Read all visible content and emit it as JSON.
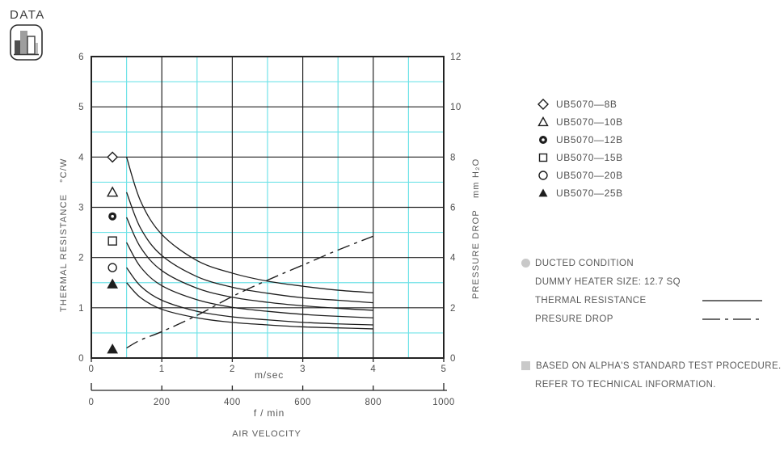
{
  "header": {
    "title": "DATA",
    "icon": "bar-chart-icon"
  },
  "colors": {
    "background": "#ffffff",
    "grid_minor": "#72e3e8",
    "grid_major": "#232323",
    "curve": "#1e1e1e",
    "tick_text": "#4f4f4f",
    "label_text": "#585858",
    "note_bullet": "#c9c9c9"
  },
  "axes": {
    "left_label": "THERMAL RESISTANCE",
    "left_unit": "°C/W",
    "right_label": "PRESSURE DROP",
    "right_unit": "mm H₂O",
    "x_unit_primary": "m/sec",
    "x_unit_secondary": "f / min",
    "x_title": "AIR VELOCITY"
  },
  "chart_data": {
    "type": "line",
    "title": "Thermal resistance and pressure drop vs air velocity",
    "x_axis": {
      "range": [
        0,
        5
      ],
      "ticks": [
        0,
        1,
        2,
        3,
        4,
        5
      ],
      "minor_step": 0.5,
      "unit": "m/sec"
    },
    "x_axis_secondary": {
      "range": [
        0,
        1000
      ],
      "ticks": [
        0,
        200,
        400,
        600,
        800,
        1000
      ],
      "unit": "f / min"
    },
    "y_left": {
      "range": [
        0,
        6
      ],
      "ticks": [
        0,
        1,
        2,
        3,
        4,
        5,
        6
      ],
      "minor_step": 0.5,
      "label": "THERMAL RESISTANCE",
      "unit": "°C/W"
    },
    "y_right": {
      "range": [
        0,
        12
      ],
      "ticks": [
        0,
        2,
        4,
        6,
        8,
        10,
        12
      ],
      "label": "PRESSURE DROP",
      "unit": "mm H₂O"
    },
    "grid": "on",
    "x_samples": [
      0.5,
      0.7,
      1,
      1.5,
      2,
      2.5,
      3,
      3.5,
      4
    ],
    "series": [
      {
        "name": "UB5070-8B",
        "axis": "left",
        "style": "solid",
        "marker": "diamond-open",
        "marker_point": {
          "x": 0.3,
          "y": 4.0
        },
        "values": [
          4.0,
          3.12,
          2.46,
          1.94,
          1.69,
          1.53,
          1.43,
          1.35,
          1.3
        ]
      },
      {
        "name": "UB5070-10B",
        "axis": "left",
        "style": "solid",
        "marker": "triangle-open",
        "marker_point": {
          "x": 0.3,
          "y": 3.3
        },
        "values": [
          3.3,
          2.58,
          2.04,
          1.62,
          1.41,
          1.29,
          1.2,
          1.15,
          1.1
        ]
      },
      {
        "name": "UB5070-12B",
        "axis": "left",
        "style": "solid",
        "marker": "circle-dot",
        "marker_point": {
          "x": 0.3,
          "y": 2.82
        },
        "values": [
          2.8,
          2.2,
          1.74,
          1.39,
          1.21,
          1.11,
          1.04,
          0.99,
          0.95
        ]
      },
      {
        "name": "UB5070-15B",
        "axis": "left",
        "style": "solid",
        "marker": "square-open",
        "marker_point": {
          "x": 0.3,
          "y": 2.33
        },
        "values": [
          2.3,
          1.81,
          1.44,
          1.16,
          1.01,
          0.93,
          0.87,
          0.83,
          0.8
        ]
      },
      {
        "name": "UB5070-20B",
        "axis": "left",
        "style": "solid",
        "marker": "circle-open",
        "marker_point": {
          "x": 0.3,
          "y": 1.8
        },
        "values": [
          1.8,
          1.43,
          1.15,
          0.93,
          0.82,
          0.76,
          0.71,
          0.68,
          0.66
        ]
      },
      {
        "name": "UB5070-25B",
        "axis": "left",
        "style": "solid",
        "marker": "triangle-filled",
        "marker_point": {
          "x": 0.3,
          "y": 1.47
        },
        "values": [
          1.5,
          1.2,
          0.97,
          0.8,
          0.71,
          0.66,
          0.62,
          0.6,
          0.58
        ]
      }
    ],
    "pressure_series": {
      "name": "PRESURE DROP",
      "axis": "right",
      "style": "dash-dot",
      "marker": "triangle-filled",
      "marker_point": {
        "x": 0.3,
        "y": 0.35
      },
      "values": [
        0.4,
        0.72,
        1.05,
        1.7,
        2.45,
        3.1,
        3.7,
        4.3,
        4.85
      ]
    }
  },
  "legend": {
    "items": [
      {
        "marker": "diamond-open",
        "label": "UB5070—8B"
      },
      {
        "marker": "triangle-open",
        "label": "UB5070—10B"
      },
      {
        "marker": "circle-dot",
        "label": "UB5070—12B"
      },
      {
        "marker": "square-open",
        "label": "UB5070—15B"
      },
      {
        "marker": "circle-open",
        "label": "UB5070—20B"
      },
      {
        "marker": "triangle-filled",
        "label": "UB5070—25B"
      }
    ]
  },
  "notes_conditions": {
    "line1": "DUCTED CONDITION",
    "line2": "DUMMY HEATER SIZE: 12.7 SQ",
    "line3": "THERMAL RESISTANCE",
    "line3_sample": "solid",
    "line4": "PRESURE DROP",
    "line4_sample": "dash-dot"
  },
  "notes_footer": {
    "line1": "BASED ON ALPHA'S STANDARD TEST PROCEDURE.",
    "line2": "REFER TO TECHNICAL INFORMATION."
  }
}
